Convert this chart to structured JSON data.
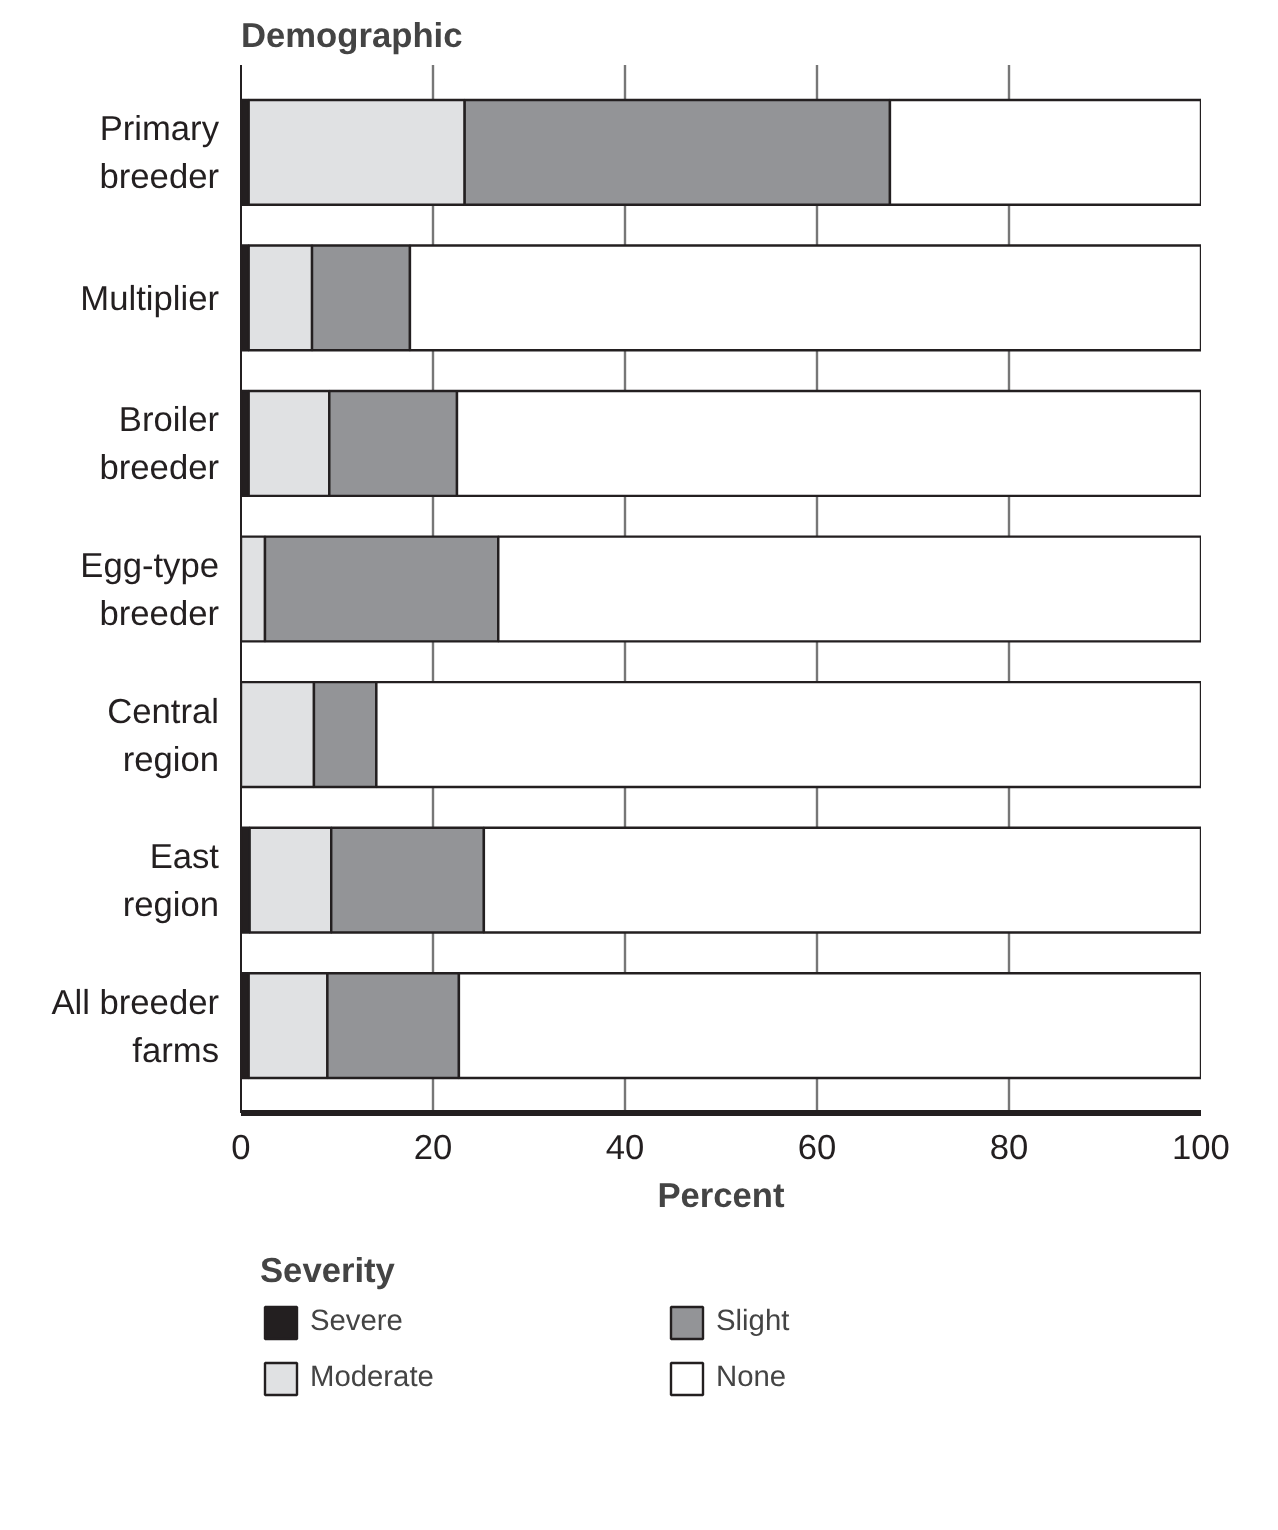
{
  "chart_data": {
    "type": "bar",
    "orientation": "horizontal",
    "stacked": true,
    "ylabel": "Demographic",
    "xlabel": "Percent",
    "legend_title": "Severity",
    "categories": [
      "Primary breeder",
      "Multiplier",
      "Broiler breeder",
      "Egg-type breeder",
      "Central region",
      "East region",
      "All breeder farms"
    ],
    "series": [
      {
        "name": "Severe",
        "color": "#231f20",
        "values": [
          0.8,
          0.8,
          0.8,
          0,
          0,
          0.9,
          0.8
        ]
      },
      {
        "name": "Moderate",
        "color": "#e0e1e3",
        "values": [
          22.5,
          6.6,
          8.4,
          2.5,
          7.6,
          8.5,
          8.2
        ]
      },
      {
        "name": "Slight",
        "color": "#939497",
        "values": [
          44.3,
          10.2,
          13.3,
          24.3,
          6.5,
          15.9,
          13.7
        ]
      },
      {
        "name": "None",
        "color": "#ffffff",
        "values": [
          32.4,
          82.4,
          77.5,
          73.2,
          85.9,
          74.7,
          77.3
        ]
      }
    ],
    "xlim": [
      0,
      100
    ],
    "xticks": [
      0,
      20,
      40,
      60,
      80,
      100
    ],
    "grid": "x",
    "legend": "bottom"
  }
}
